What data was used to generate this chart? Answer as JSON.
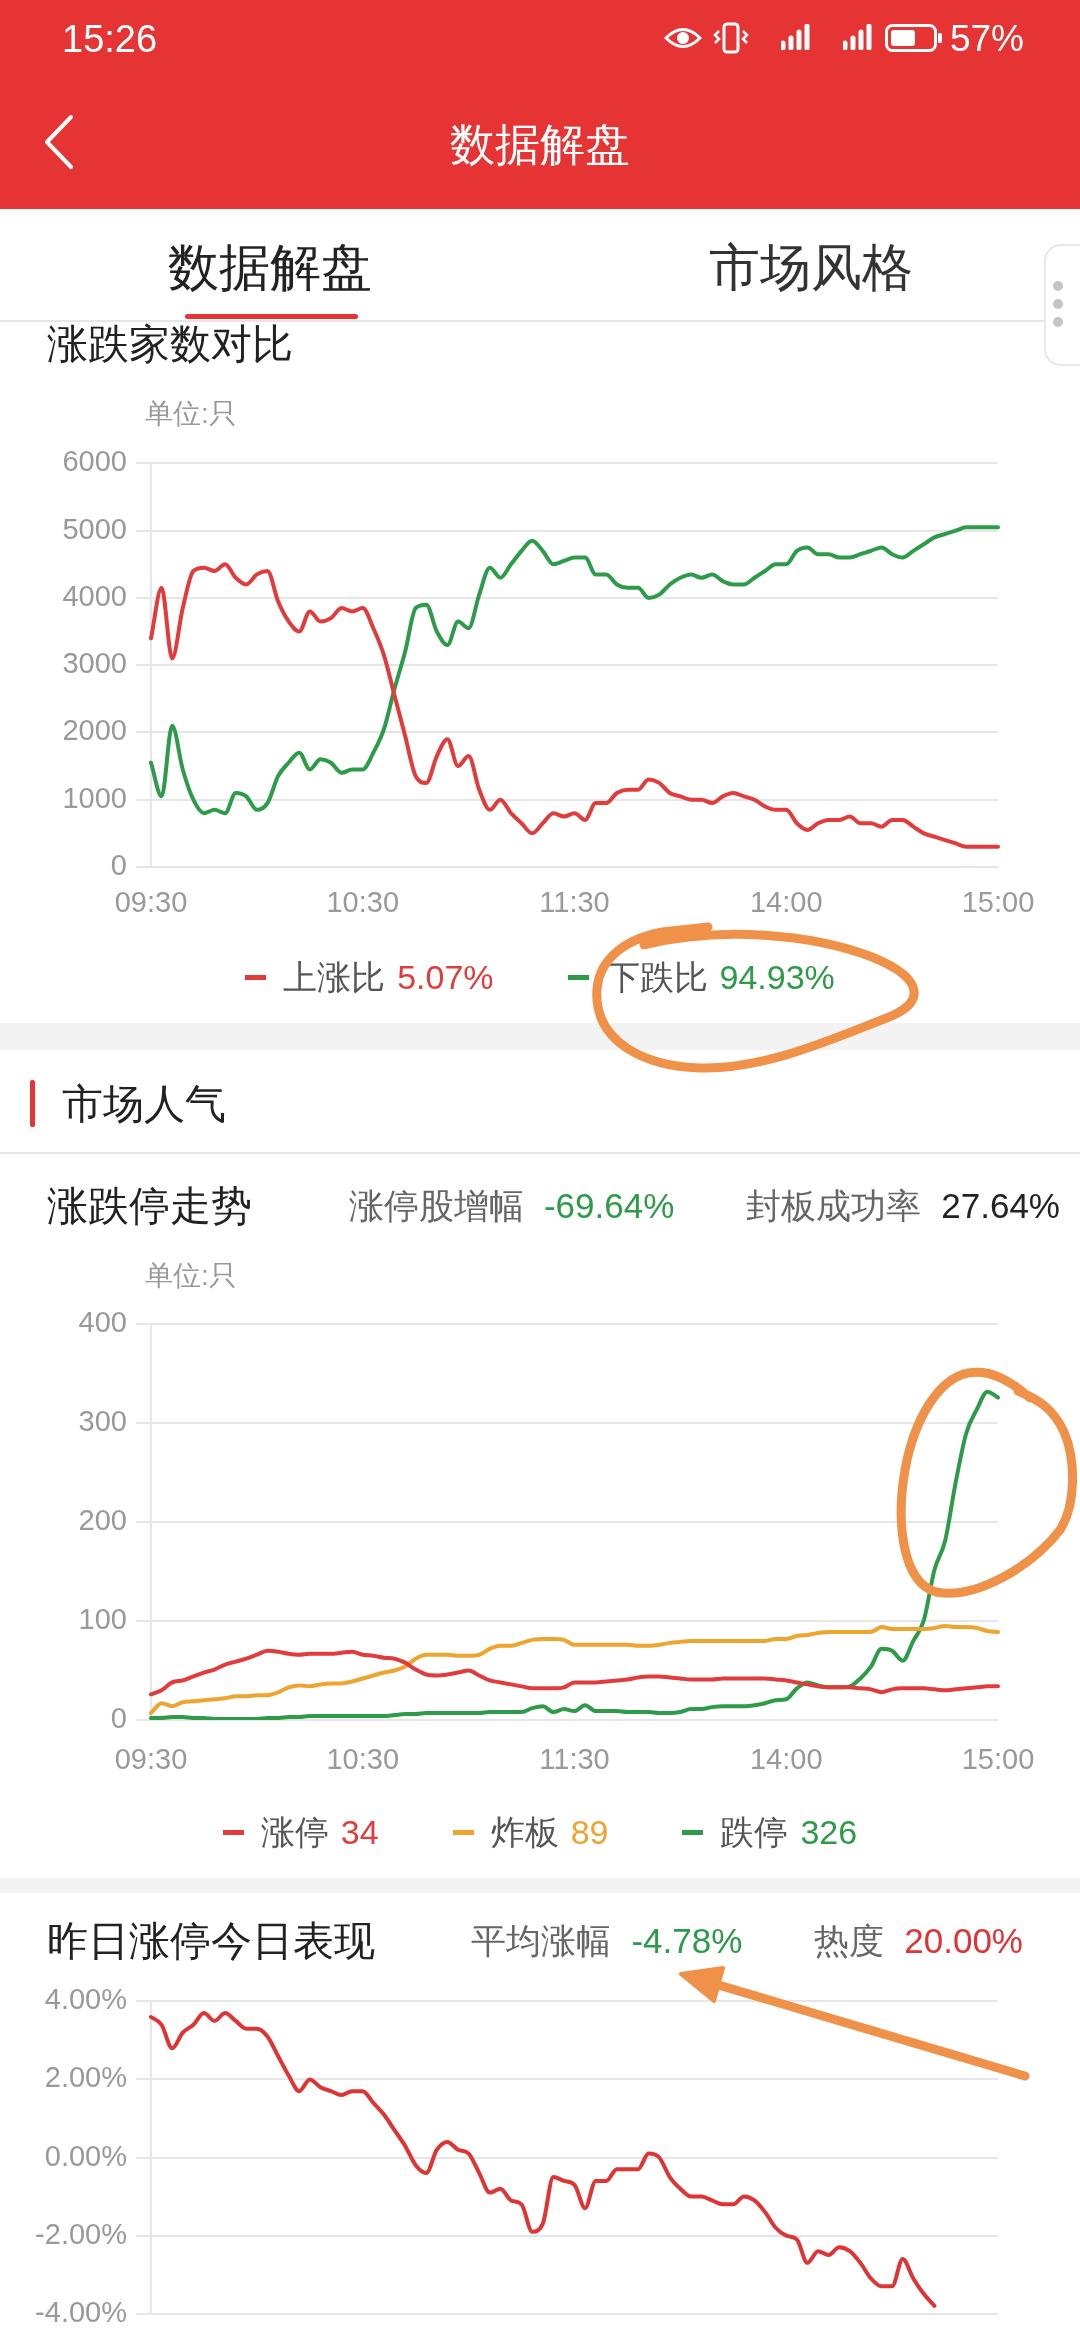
{
  "chart_data": [
    {
      "type": "other",
      "title": "数据解盘",
      "annotations": [
        "15:26",
        "57%",
        "数据解盘",
        "市场风格"
      ]
    },
    {
      "type": "line",
      "title": "涨跌家数对比",
      "ylabel": "单位:只",
      "categories": [
        "09:30",
        null,
        null,
        null,
        null,
        null,
        null,
        null,
        null,
        null,
        null,
        null,
        null,
        null,
        null,
        null,
        null,
        null,
        null,
        null,
        "10:30",
        null,
        null,
        null,
        null,
        null,
        null,
        null,
        null,
        null,
        null,
        null,
        null,
        null,
        null,
        null,
        null,
        null,
        null,
        null,
        "11:30",
        null,
        null,
        null,
        null,
        null,
        null,
        null,
        null,
        null,
        null,
        null,
        null,
        null,
        null,
        null,
        null,
        null,
        null,
        null,
        "14:00",
        null,
        null,
        null,
        null,
        null,
        null,
        null,
        null,
        null,
        null,
        null,
        null,
        null,
        null,
        null,
        null,
        null,
        null,
        null,
        "15:00"
      ],
      "series": [
        {
          "name": "上涨比",
          "color": "#e23b3b",
          "values": [
            3400,
            4150,
            3100,
            3850,
            4400,
            4450,
            4400,
            4500,
            4300,
            4200,
            4350,
            4400,
            3950,
            3650,
            3500,
            3800,
            3650,
            3700,
            3850,
            3800,
            3850,
            3550,
            3150,
            2550,
            1950,
            1350,
            1250,
            1650,
            1900,
            1500,
            1650,
            1150,
            850,
            1000,
            800,
            650,
            500,
            650,
            800,
            750,
            800,
            700,
            950,
            950,
            1100,
            1150,
            1150,
            1300,
            1250,
            1100,
            1050,
            1000,
            1000,
            950,
            1050,
            1100,
            1050,
            1000,
            900,
            850,
            850,
            650,
            550,
            650,
            700,
            700,
            750,
            650,
            650,
            600,
            700,
            700,
            600,
            500,
            450,
            400,
            350,
            300,
            300,
            300,
            300
          ]
        },
        {
          "name": "下跌比",
          "color": "#2e9b4a",
          "values": [
            1550,
            1050,
            2100,
            1450,
            1000,
            800,
            850,
            800,
            1100,
            1050,
            850,
            950,
            1350,
            1550,
            1700,
            1450,
            1600,
            1550,
            1400,
            1450,
            1450,
            1700,
            2050,
            2650,
            3200,
            3850,
            3900,
            3500,
            3300,
            3650,
            3550,
            4050,
            4450,
            4300,
            4500,
            4700,
            4850,
            4700,
            4500,
            4550,
            4600,
            4600,
            4350,
            4350,
            4200,
            4150,
            4150,
            4000,
            4050,
            4200,
            4300,
            4350,
            4300,
            4350,
            4250,
            4200,
            4200,
            4300,
            4400,
            4500,
            4500,
            4700,
            4750,
            4650,
            4650,
            4600,
            4600,
            4650,
            4700,
            4750,
            4650,
            4600,
            4700,
            4800,
            4900,
            4950,
            5000,
            5050,
            5050,
            5050,
            5050
          ]
        }
      ],
      "ylim": [
        0,
        6000
      ],
      "yticks": [
        0,
        1000,
        2000,
        3000,
        4000,
        5000,
        6000
      ],
      "grid": "y",
      "legend": "bottom",
      "marker": "none",
      "line_style": "solid",
      "annotations": [
        "5.07%",
        "94.93%"
      ]
    },
    {
      "type": "other",
      "title": "市场人气"
    },
    {
      "type": "line",
      "title": "涨跌停走势",
      "ylabel": "单位:只",
      "categories": [
        "09:30",
        null,
        null,
        null,
        null,
        null,
        null,
        null,
        null,
        null,
        null,
        null,
        null,
        null,
        null,
        null,
        null,
        null,
        null,
        null,
        "10:30",
        null,
        null,
        null,
        null,
        null,
        null,
        null,
        null,
        null,
        null,
        null,
        null,
        null,
        null,
        null,
        null,
        null,
        null,
        null,
        "11:30",
        null,
        null,
        null,
        null,
        null,
        null,
        null,
        null,
        null,
        null,
        null,
        null,
        null,
        null,
        null,
        null,
        null,
        null,
        null,
        "14:00",
        null,
        null,
        null,
        null,
        null,
        null,
        null,
        null,
        null,
        null,
        null,
        null,
        null,
        null,
        null,
        null,
        null,
        null,
        null,
        "15:00"
      ],
      "series": [
        {
          "name": "涨停",
          "color": "#e23b3b",
          "values": [
            26,
            30,
            38,
            40,
            44,
            48,
            51,
            56,
            59,
            62,
            66,
            70,
            69,
            67,
            66,
            67,
            67,
            67,
            68,
            69,
            66,
            65,
            63,
            62,
            58,
            51,
            46,
            45,
            46,
            48,
            50,
            45,
            40,
            38,
            36,
            34,
            32,
            32,
            32,
            33,
            38,
            38,
            38,
            39,
            40,
            41,
            43,
            44,
            44,
            43,
            42,
            41,
            41,
            41,
            42,
            42,
            42,
            42,
            42,
            41,
            40,
            38,
            36,
            34,
            33,
            33,
            33,
            32,
            31,
            28,
            31,
            32,
            32,
            32,
            31,
            30,
            31,
            32,
            33,
            34,
            34
          ]
        },
        {
          "name": "炸板",
          "color": "#eea52f",
          "values": [
            7,
            17,
            14,
            18,
            19,
            20,
            21,
            22,
            24,
            24,
            25,
            25,
            28,
            33,
            35,
            34,
            36,
            37,
            37,
            39,
            42,
            45,
            48,
            50,
            54,
            62,
            66,
            66,
            66,
            65,
            65,
            66,
            72,
            75,
            75,
            78,
            81,
            82,
            82,
            81,
            76,
            76,
            76,
            76,
            76,
            76,
            75,
            75,
            76,
            78,
            79,
            80,
            80,
            80,
            80,
            80,
            80,
            80,
            80,
            82,
            82,
            85,
            86,
            88,
            89,
            89,
            89,
            89,
            89,
            94,
            92,
            92,
            92,
            92,
            93,
            95,
            94,
            94,
            93,
            90,
            89
          ]
        },
        {
          "name": "跌停",
          "color": "#2e9b4a",
          "values": [
            2,
            2,
            3,
            3,
            2,
            2,
            1,
            1,
            1,
            1,
            1,
            2,
            2,
            3,
            3,
            4,
            4,
            4,
            4,
            4,
            4,
            4,
            4,
            5,
            6,
            6,
            7,
            7,
            7,
            7,
            7,
            7,
            8,
            8,
            8,
            8,
            12,
            14,
            8,
            11,
            9,
            15,
            9,
            9,
            9,
            8,
            8,
            8,
            7,
            7,
            8,
            11,
            11,
            13,
            14,
            14,
            14,
            15,
            17,
            20,
            21,
            32,
            38,
            35,
            33,
            33,
            34,
            42,
            54,
            72,
            70,
            60,
            80,
            101,
            152,
            181,
            240,
            290,
            314,
            332,
            326
          ]
        }
      ],
      "ylim": [
        0,
        400
      ],
      "yticks": [
        0,
        100,
        200,
        300,
        400
      ],
      "grid": "y",
      "legend": "bottom",
      "marker": "none",
      "line_style": "solid",
      "annotations": [
        "34",
        "89",
        "326",
        "涨停股增幅",
        "-69.64%",
        "封板成功率",
        "27.64%"
      ]
    },
    {
      "type": "line",
      "title": "昨日涨停今日表现",
      "categories": [
        null,
        null,
        null,
        null,
        null,
        null,
        null,
        null,
        null,
        null,
        null,
        null,
        null,
        null,
        null,
        null,
        null,
        null,
        null,
        null,
        null,
        null,
        null,
        null,
        null,
        null,
        null,
        null,
        null,
        null,
        null,
        null,
        null,
        null,
        null,
        null,
        null,
        null,
        null,
        null,
        null,
        null,
        null,
        null,
        null,
        null,
        null,
        null,
        null,
        null,
        null,
        null,
        null,
        null,
        null,
        null,
        null,
        null,
        null,
        null,
        null,
        null,
        null,
        null,
        null,
        null,
        null,
        null,
        null,
        null,
        null,
        null,
        null,
        null,
        null,
        null,
        null,
        null,
        null,
        null,
        null
      ],
      "color": "#e03434",
      "values": [
        3.6,
        3.4,
        2.8,
        3.2,
        3.4,
        3.7,
        3.5,
        3.7,
        3.5,
        3.3,
        3.3,
        3.1,
        2.6,
        2.1,
        1.7,
        2.0,
        1.8,
        1.7,
        1.6,
        1.7,
        1.7,
        1.4,
        1.1,
        0.7,
        0.3,
        -0.2,
        -0.4,
        0.2,
        0.4,
        0.2,
        0.1,
        -0.4,
        -0.9,
        -0.8,
        -1.1,
        -1.2,
        -1.9,
        -1.7,
        -0.5,
        -0.6,
        -0.7,
        -1.3,
        -0.6,
        -0.6,
        -0.3,
        -0.3,
        -0.3,
        0.1,
        0.0,
        -0.5,
        -0.8,
        -1.0,
        -1.0,
        -1.1,
        -1.2,
        -1.2,
        -1.0,
        -1.1,
        -1.4,
        -1.8,
        -2.0,
        -2.1,
        -2.7,
        -2.4,
        -2.5,
        -2.3,
        -2.4,
        -2.7,
        -3.1,
        -3.3,
        -3.3,
        -2.6,
        -3.1,
        -3.5,
        -3.8,
        null,
        null,
        null,
        null,
        null,
        null
      ],
      "ylim": [
        -4,
        4
      ],
      "yticks": [
        {
          "value": -4,
          "label": "-4.00%"
        },
        {
          "value": -2,
          "label": "-2.00%"
        },
        {
          "value": 0,
          "label": "0.00%"
        },
        {
          "value": 2,
          "label": "2.00%"
        },
        {
          "value": 4,
          "label": "4.00%"
        }
      ],
      "grid": "y",
      "tick_labels": "y",
      "marker": "none",
      "line_style": "solid",
      "annotations": [
        "平均涨幅",
        "-4.78%",
        "热度",
        "20.00%"
      ]
    }
  ]
}
